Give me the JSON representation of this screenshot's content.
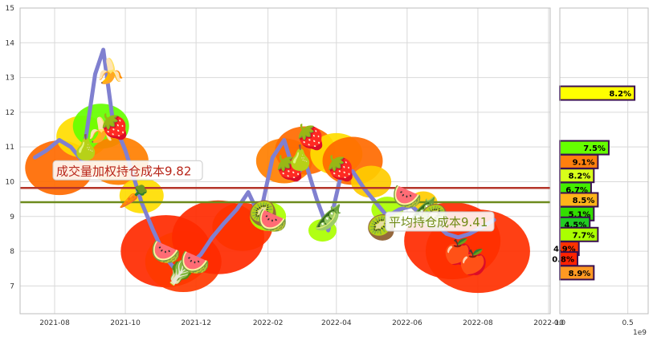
{
  "chart_data": [
    {
      "type": "line",
      "title": "",
      "xlabel": "",
      "ylabel": "",
      "ylim": [
        6.2,
        15
      ],
      "y_ticks": [
        7,
        8,
        9,
        10,
        11,
        12,
        13,
        14,
        15
      ],
      "x_ticks": [
        "2021-08",
        "2021-10",
        "2021-12",
        "2022-02",
        "2022-04",
        "2022-06",
        "2022-08",
        "2022-10"
      ],
      "grid": true,
      "price_series": {
        "dates": [
          "2021-07-15",
          "2021-07-25",
          "2021-08-05",
          "2021-08-15",
          "2021-08-25",
          "2021-09-05",
          "2021-09-12",
          "2021-09-20",
          "2021-10-01",
          "2021-10-15",
          "2021-10-25",
          "2021-11-05",
          "2021-11-15",
          "2021-11-25",
          "2021-12-05",
          "2021-12-15",
          "2021-12-25",
          "2022-01-05",
          "2022-01-15",
          "2022-01-25",
          "2022-02-05",
          "2022-02-15",
          "2022-02-25",
          "2022-03-05",
          "2022-03-15",
          "2022-03-25",
          "2022-04-05",
          "2022-04-15",
          "2022-04-25",
          "2022-05-05",
          "2022-05-15",
          "2022-05-25",
          "2022-06-05",
          "2022-06-15",
          "2022-06-25",
          "2022-07-05",
          "2022-07-15",
          "2022-07-25",
          "2022-08-05",
          "2022-08-15"
        ],
        "values": [
          10.7,
          10.9,
          11.2,
          11.0,
          10.6,
          13.1,
          13.8,
          11.8,
          10.9,
          9.4,
          8.6,
          7.8,
          7.4,
          7.6,
          7.9,
          8.4,
          8.8,
          9.2,
          9.7,
          9.0,
          10.7,
          11.2,
          10.1,
          10.6,
          9.5,
          8.6,
          10.2,
          10.3,
          9.8,
          9.4,
          9.0,
          9.2,
          9.3,
          9.0,
          8.8,
          8.5,
          8.4,
          8.5,
          8.7,
          8.9
        ]
      },
      "lines": [
        {
          "label": "成交量加权持仓成本",
          "value": 9.82,
          "color": "#b5352a"
        },
        {
          "label": "平均持仓成本",
          "value": 9.41,
          "color": "#6d8b1d"
        }
      ],
      "annotations": [
        {
          "text": "成交量加权持仓成本9.82"
        },
        {
          "text": "平均持仓成本9.41"
        }
      ]
    },
    {
      "type": "bar",
      "orientation": "horizontal",
      "xlim": [
        0,
        0.65
      ],
      "x_ticks": [
        "0.0",
        "0.5"
      ],
      "x_offset_label": "1e9",
      "bars": [
        {
          "price": 12.55,
          "value": 0.55,
          "label": "8.2%",
          "color": "#ffff00"
        },
        {
          "price": 10.98,
          "value": 0.36,
          "label": "7.5%",
          "color": "#66ff00"
        },
        {
          "price": 10.58,
          "value": 0.28,
          "label": "9.1%",
          "color": "#ff7f0e"
        },
        {
          "price": 10.18,
          "value": 0.25,
          "label": "8.2%",
          "color": "#d8ff1a"
        },
        {
          "price": 9.78,
          "value": 0.23,
          "label": "6.7%",
          "color": "#44ee00"
        },
        {
          "price": 9.48,
          "value": 0.28,
          "label": "8.5%",
          "color": "#ffb31a"
        },
        {
          "price": 9.08,
          "value": 0.25,
          "label": "5.1%",
          "color": "#33dd00"
        },
        {
          "price": 8.78,
          "value": 0.22,
          "label": "4.5%",
          "color": "#22cc22"
        },
        {
          "price": 8.48,
          "value": 0.28,
          "label": "7.7%",
          "color": "#aaff00"
        },
        {
          "price": 8.08,
          "value": 0.14,
          "label": "4.9%",
          "color": "#ff3300"
        },
        {
          "price": 7.78,
          "value": 0.13,
          "label": "0.8%",
          "color": "#ff2200"
        },
        {
          "price": 7.38,
          "value": 0.25,
          "label": "8.9%",
          "color": "#ff9922"
        }
      ]
    }
  ],
  "decorations": {
    "icons": [
      "banana-icon",
      "strawberry-icon",
      "pear-icon",
      "carrot-icon",
      "watermelon-icon",
      "radish-icon",
      "kiwi-icon",
      "peas-icon",
      "apple-icon"
    ]
  }
}
